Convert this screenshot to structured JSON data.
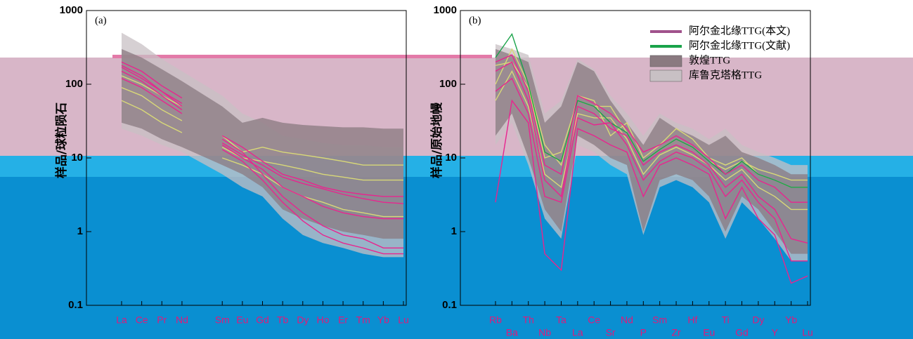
{
  "chart_data": [
    {
      "type": "line",
      "title": "(a)",
      "y_label": "样品/球粒陨石",
      "log_scale": true,
      "ylim": [
        0.1,
        1000
      ],
      "yticks": [
        0.1,
        1,
        10,
        100,
        1000
      ],
      "categories": [
        "La",
        "Ce",
        "Pr",
        "Nd",
        null,
        "Sm",
        "Eu",
        "Gd",
        "Tb",
        "Dy",
        "Ho",
        "Er",
        "Tm",
        "Yb",
        "Lu"
      ],
      "fields": [
        {
          "color": "#c8c0c4",
          "upper": [
            500,
            350,
            220,
            150,
            null,
            70,
            40,
            30,
            20,
            18,
            16,
            15,
            15,
            14,
            14
          ],
          "lower": [
            25,
            20,
            15,
            12,
            null,
            6,
            4,
            3,
            1.5,
            0.9,
            0.7,
            0.6,
            0.5,
            0.45,
            0.45
          ]
        },
        {
          "color": "#8a7a80",
          "upper": [
            300,
            230,
            160,
            110,
            null,
            50,
            30,
            35,
            30,
            28,
            27,
            26,
            26,
            25,
            25
          ],
          "lower": [
            30,
            25,
            18,
            14,
            null,
            8,
            6,
            4,
            2,
            1.5,
            1.2,
            1,
            0.9,
            0.8,
            0.8
          ]
        }
      ],
      "series": [
        {
          "color": "#d8d878",
          "values": [
            90,
            70,
            45,
            32,
            null,
            14,
            10,
            9,
            8,
            7,
            6,
            5.5,
            5,
            5,
            5
          ]
        },
        {
          "color": "#d8d878",
          "values": [
            60,
            45,
            30,
            22,
            null,
            10,
            8,
            6,
            4,
            3,
            2.5,
            2,
            1.8,
            1.6,
            1.6
          ]
        },
        {
          "color": "#d8d878",
          "values": [
            130,
            100,
            70,
            50,
            null,
            20,
            12,
            14,
            12,
            11,
            10,
            9,
            8,
            8,
            8
          ]
        },
        {
          "color": "#e8258f",
          "values": [
            180,
            130,
            80,
            55,
            null,
            18,
            12,
            6,
            3,
            1.8,
            1.2,
            0.9,
            0.8,
            0.6,
            0.6
          ]
        },
        {
          "color": "#e8258f",
          "values": [
            150,
            110,
            70,
            45,
            null,
            15,
            10,
            7,
            4,
            3,
            2.2,
            1.8,
            1.6,
            1.5,
            1.5
          ]
        },
        {
          "color": "#e8258f",
          "values": [
            200,
            150,
            95,
            65,
            null,
            20,
            14,
            9,
            6,
            5,
            4,
            3.5,
            3.2,
            3,
            3
          ]
        },
        {
          "color": "#e8258f",
          "values": [
            120,
            90,
            60,
            40,
            null,
            13,
            9,
            5,
            2.5,
            1.4,
            0.9,
            0.7,
            0.6,
            0.5,
            0.5
          ]
        },
        {
          "color": "#e8258f",
          "values": [
            170,
            120,
            80,
            50,
            null,
            16,
            11,
            8,
            5.5,
            4.5,
            3.8,
            3.2,
            2.8,
            2.5,
            2.4
          ]
        }
      ]
    },
    {
      "type": "line",
      "title": "(b)",
      "y_label": "样品/原始地幔",
      "log_scale": true,
      "ylim": [
        0.1,
        1000
      ],
      "yticks": [
        0.1,
        1,
        10,
        100,
        1000
      ],
      "categories": [
        "Rb",
        "Ba",
        "Th",
        "Nb",
        "Ta",
        "La",
        "Ce",
        "Sr",
        "Nd",
        "P",
        "Sm",
        "Zr",
        "Hf",
        "Eu",
        "Ti",
        "Gd",
        "Dy",
        "Y",
        "Yb",
        "Lu"
      ],
      "fields": [
        {
          "color": "#c8c0c4",
          "upper": [
            350,
            300,
            250,
            40,
            60,
            220,
            160,
            70,
            40,
            20,
            40,
            30,
            25,
            18,
            25,
            15,
            12,
            10,
            8,
            8
          ],
          "lower": [
            15,
            30,
            8,
            1.5,
            0.8,
            15,
            12,
            8,
            6,
            0.9,
            4,
            5,
            4,
            2.5,
            0.8,
            2.5,
            1.5,
            0.8,
            0.4,
            0.4
          ]
        },
        {
          "color": "#8a7a80",
          "upper": [
            300,
            250,
            200,
            30,
            50,
            200,
            150,
            60,
            30,
            15,
            35,
            25,
            20,
            15,
            20,
            12,
            10,
            8,
            6,
            6
          ],
          "lower": [
            20,
            40,
            10,
            2,
            1,
            20,
            15,
            10,
            8,
            1,
            5,
            6,
            5,
            3,
            1,
            3,
            2,
            1,
            0.5,
            0.5
          ]
        }
      ],
      "series": [
        {
          "color": "#d8d878",
          "values": [
            100,
            300,
            100,
            15,
            8,
            70,
            60,
            20,
            30,
            10,
            15,
            25,
            18,
            10,
            8,
            10,
            6,
            5,
            4,
            4
          ]
        },
        {
          "color": "#d8d878",
          "values": [
            60,
            150,
            50,
            6,
            4,
            40,
            35,
            35,
            18,
            6,
            11,
            14,
            11,
            8,
            5,
            7,
            4,
            3,
            2,
            2
          ]
        },
        {
          "color": "#d8d878",
          "values": [
            180,
            200,
            90,
            10,
            12,
            60,
            50,
            50,
            22,
            9,
            13,
            18,
            14,
            9,
            7,
            9,
            7,
            6,
            5,
            5
          ]
        },
        {
          "color": "#1aa34a",
          "values": [
            230,
            480,
            100,
            12,
            9,
            60,
            50,
            30,
            22,
            9,
            13,
            18,
            14,
            9,
            6,
            9,
            6,
            5,
            4,
            4
          ]
        },
        {
          "color": "#e8258f",
          "values": [
            150,
            200,
            60,
            5,
            3,
            50,
            40,
            25,
            20,
            8,
            12,
            15,
            12,
            8,
            4,
            6,
            3,
            2,
            0.8,
            0.7
          ]
        },
        {
          "color": "#e8258f",
          "values": [
            80,
            120,
            40,
            3,
            2.5,
            35,
            28,
            30,
            15,
            5,
            9,
            12,
            10,
            7,
            3,
            5,
            2.5,
            1.5,
            0.4,
            0.4
          ]
        },
        {
          "color": "#e8258f",
          "values": [
            200,
            250,
            80,
            8,
            6,
            70,
            55,
            40,
            25,
            12,
            15,
            20,
            15,
            10,
            6,
            8,
            5,
            4,
            2.5,
            2.5
          ]
        },
        {
          "color": "#e8258f",
          "values": [
            2.5,
            60,
            30,
            0.5,
            0.3,
            25,
            20,
            15,
            12,
            3,
            8,
            10,
            8,
            6,
            1.5,
            4,
            1.5,
            0.9,
            0.2,
            0.25
          ]
        }
      ],
      "legend": {
        "position": "upper right",
        "items": [
          {
            "name": "阿尔金北缘TTG(本文)",
            "color": "#a0528c",
            "shape": "line"
          },
          {
            "name": "阿尔金北缘TTG(文献)",
            "color": "#1aa34a",
            "shape": "line"
          },
          {
            "name": "敦煌TTG",
            "color": "#8a7a80",
            "shape": "box"
          },
          {
            "name": "库鲁克塔格TTG",
            "color": "#c8c0c4",
            "shape": "box"
          }
        ]
      }
    }
  ]
}
